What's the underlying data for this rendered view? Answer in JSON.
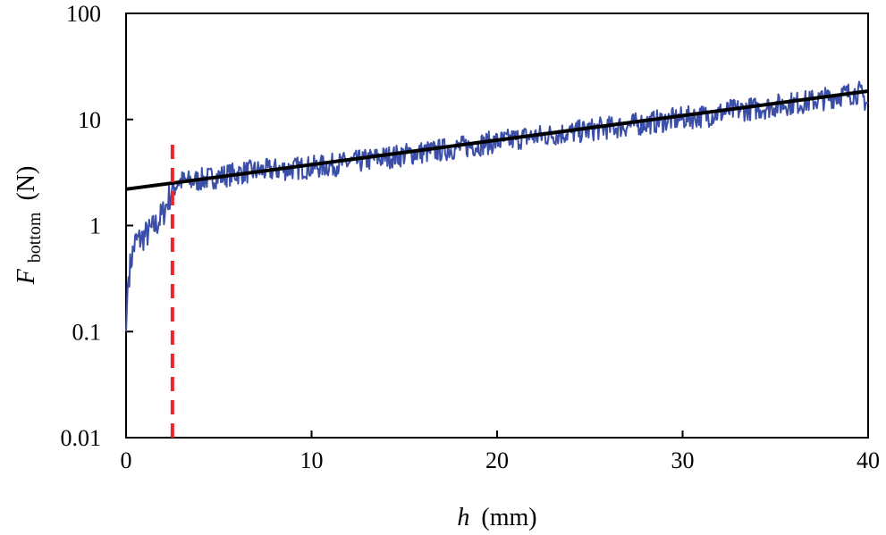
{
  "chart_data": {
    "type": "line",
    "title": "",
    "xlabel": {
      "var": "h",
      "unit": "(mm)"
    },
    "ylabel": {
      "var": "F",
      "sub": "bottom",
      "unit": "(N)"
    },
    "xlim": [
      0,
      40
    ],
    "ylim": [
      0.01,
      100
    ],
    "yscale": "log",
    "grid": false,
    "legend": "none",
    "x_ticks": [
      0,
      10,
      20,
      30,
      40
    ],
    "x_tick_labels": [
      "0",
      "10",
      "20",
      "30",
      "40"
    ],
    "y_ticks": [
      0.01,
      0.1,
      1,
      10,
      100
    ],
    "y_tick_labels": [
      "0.01",
      "0.1",
      "1",
      "10",
      "100"
    ],
    "series": [
      {
        "style": "measured",
        "color": "#3b4fa8",
        "x": [
          0,
          0.1,
          0.3,
          0.5,
          0.8,
          1.2,
          1.6,
          2.0,
          2.4,
          2.8,
          3.5,
          4.5,
          5.5,
          6.5,
          7.5,
          8.5,
          9.5,
          10.5,
          11.5,
          12.5,
          13.5,
          14.5,
          15.5,
          16.5,
          17.5,
          18.5,
          19.5,
          20.5,
          21.5,
          22.5,
          23.5,
          24.5,
          25.5,
          26.5,
          27.5,
          28.5,
          29.5,
          30.5,
          31.5,
          32.5,
          33.5,
          34.5,
          35.5,
          36.5,
          37.5,
          38.5,
          39.5,
          40
        ],
        "y": [
          0.1,
          0.3,
          0.5,
          0.7,
          0.75,
          0.85,
          1.0,
          1.3,
          2.0,
          2.6,
          2.6,
          2.8,
          3.0,
          3.2,
          3.3,
          3.4,
          3.5,
          3.6,
          3.8,
          4.0,
          4.3,
          4.5,
          4.8,
          5.0,
          5.3,
          5.6,
          6.0,
          6.3,
          6.8,
          7.0,
          7.4,
          7.7,
          8.2,
          8.5,
          9.0,
          9.5,
          10.0,
          10.5,
          11.0,
          12.0,
          12.5,
          13.0,
          14.0,
          14.5,
          15.5,
          17.0,
          18.0,
          14.0
        ]
      },
      {
        "style": "fit",
        "color": "#000000",
        "x": [
          0,
          40
        ],
        "y": [
          2.2,
          18.5
        ]
      }
    ],
    "annotations": [
      {
        "type": "vertical_dashed_line",
        "x": 2.5,
        "y_top": 6,
        "color": "#e8262b"
      }
    ]
  }
}
